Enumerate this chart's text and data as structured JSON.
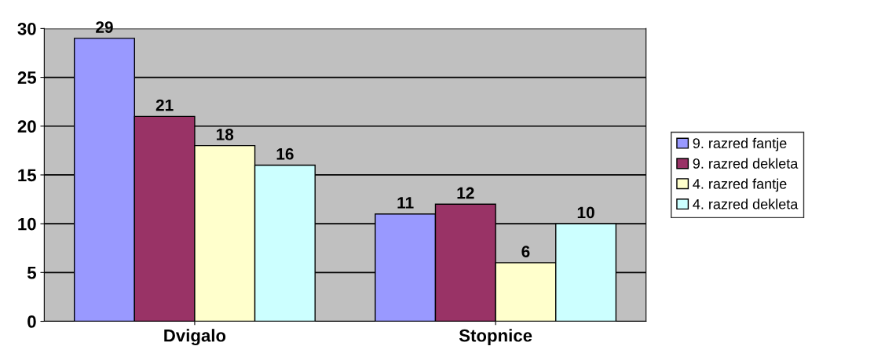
{
  "chart_data": {
    "type": "bar",
    "categories": [
      "Dvigalo",
      "Stopnice"
    ],
    "series": [
      {
        "name": "9. razred fantje",
        "color": "#9999ff",
        "values": [
          29,
          11
        ]
      },
      {
        "name": "9. razred dekleta",
        "color": "#993366",
        "values": [
          21,
          12
        ]
      },
      {
        "name": "4. razred fantje",
        "color": "#ffffcc",
        "values": [
          18,
          6
        ]
      },
      {
        "name": "4. razred dekleta",
        "color": "#ccffff",
        "values": [
          16,
          10
        ]
      }
    ],
    "ylim": [
      0,
      30
    ],
    "yticks": [
      0,
      5,
      10,
      15,
      20,
      25,
      30
    ],
    "grid": "y",
    "legend": "right",
    "data_labels": true
  }
}
